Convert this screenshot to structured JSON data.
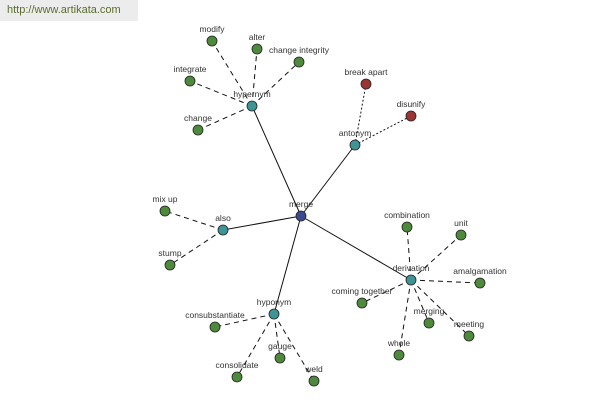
{
  "banner": {
    "url": "http://www.artikata.com"
  },
  "colors": {
    "root": "#3b4a8e",
    "relation": "#3f9496",
    "related": "#4e8a3c",
    "antonym_word": "#9b3434",
    "banner_text": "#5a6e2e"
  },
  "graph": {
    "root": "merge",
    "relations": [
      {
        "label": "hypernym",
        "style": "dashed",
        "words": [
          "modify",
          "alter",
          "change integrity",
          "integrate",
          "change"
        ]
      },
      {
        "label": "antonym",
        "style": "dotted",
        "words": [
          "break apart",
          "disunify"
        ]
      },
      {
        "label": "also",
        "style": "dashed",
        "words": [
          "mix up",
          "stump"
        ]
      },
      {
        "label": "hyponym",
        "style": "dashed",
        "words": [
          "consubstantiate",
          "consolidate",
          "gauge",
          "weld"
        ]
      },
      {
        "label": "derivation",
        "style": "dashed",
        "words": [
          "combination",
          "unit",
          "amalgamation",
          "coming together",
          "merging",
          "meeting",
          "whole"
        ]
      }
    ]
  }
}
